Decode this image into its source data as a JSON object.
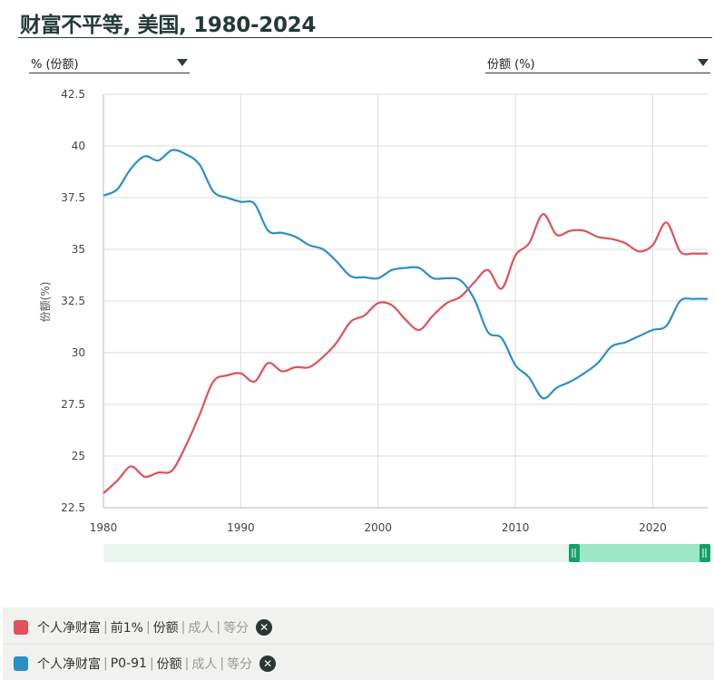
{
  "title": "财富不平等, 美国, 1980-2024",
  "dropdowns": {
    "left": {
      "value": "% (份额)"
    },
    "right": {
      "value": "份额 (%)"
    }
  },
  "legend": [
    {
      "parts": [
        "个人净财富",
        "前1%",
        "份额",
        "成人",
        "等分"
      ],
      "color": "#e0515b"
    },
    {
      "parts": [
        "个人净财富",
        "P0-91",
        "份额",
        "成人",
        "等分"
      ],
      "color": "#2a8fc8"
    }
  ],
  "colors": {
    "top1": "#e0515b",
    "p091": "#2a8fc8",
    "slider": "#9de6c6",
    "handle": "#14a06a"
  },
  "chart_data": {
    "type": "line",
    "title": "财富不平等, 美国, 1980-2024",
    "xlabel": "",
    "ylabel": "份额(%)",
    "xlim": [
      1980,
      2024
    ],
    "ylim": [
      22.5,
      42.5
    ],
    "yticks": [
      "22.5",
      "25",
      "27.5",
      "30",
      "32.5",
      "35",
      "37.5",
      "40",
      "42.5"
    ],
    "xticks": [
      "1980",
      "1990",
      "2000",
      "2010",
      "2020"
    ],
    "grid": true,
    "x": [
      1980,
      1981,
      1982,
      1983,
      1984,
      1985,
      1986,
      1987,
      1988,
      1989,
      1990,
      1991,
      1992,
      1993,
      1994,
      1995,
      1996,
      1997,
      1998,
      1999,
      2000,
      2001,
      2002,
      2003,
      2004,
      2005,
      2006,
      2007,
      2008,
      2009,
      2010,
      2011,
      2012,
      2013,
      2014,
      2015,
      2016,
      2017,
      2018,
      2019,
      2020,
      2021,
      2022,
      2023,
      2024
    ],
    "series": [
      {
        "name": "个人净财富 | 前1% | 份额 | 成人 | 等分",
        "values": [
          23.2,
          23.8,
          24.5,
          24.0,
          24.2,
          24.3,
          25.5,
          27.0,
          28.6,
          28.9,
          29.0,
          28.6,
          29.5,
          29.1,
          29.3,
          29.3,
          29.8,
          30.5,
          31.5,
          31.8,
          32.4,
          32.3,
          31.6,
          31.1,
          31.8,
          32.4,
          32.7,
          33.4,
          34.0,
          33.1,
          34.7,
          35.3,
          36.7,
          35.7,
          35.9,
          35.9,
          35.6,
          35.5,
          35.3,
          34.9,
          35.2,
          36.3,
          34.9,
          34.8,
          34.8
        ]
      },
      {
        "name": "个人净财富 | P0-91 | 份额 | 成人 | 等分",
        "values": [
          37.6,
          37.9,
          38.9,
          39.5,
          39.3,
          39.8,
          39.6,
          39.1,
          37.8,
          37.5,
          37.3,
          37.2,
          35.9,
          35.8,
          35.6,
          35.2,
          35.0,
          34.4,
          33.7,
          33.65,
          33.6,
          34.0,
          34.1,
          34.1,
          33.6,
          33.6,
          33.5,
          32.6,
          31.0,
          30.7,
          29.4,
          28.8,
          27.8,
          28.3,
          28.6,
          29.0,
          29.5,
          30.3,
          30.5,
          30.8,
          31.1,
          31.3,
          32.5,
          32.6,
          32.6
        ]
      }
    ]
  }
}
